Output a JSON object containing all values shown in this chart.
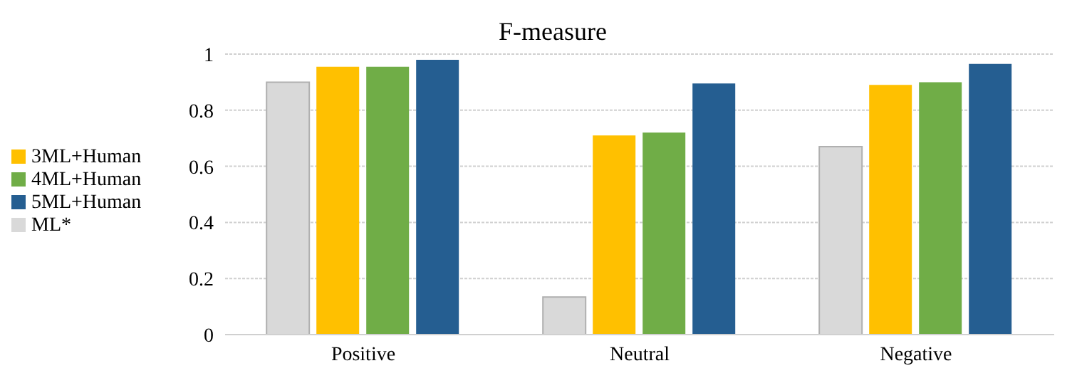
{
  "chart_data": {
    "type": "bar",
    "title": "F-measure",
    "categories": [
      "Positive",
      "Neutral",
      "Negative"
    ],
    "series": [
      {
        "name": "ML*",
        "color": "#d9d9d9",
        "values": [
          0.9,
          0.134,
          0.67
        ]
      },
      {
        "name": "3ML+Human",
        "color": "#ffc000",
        "values": [
          0.955,
          0.71,
          0.89
        ]
      },
      {
        "name": "4ML+Human",
        "color": "#70ad47",
        "values": [
          0.955,
          0.72,
          0.9
        ]
      },
      {
        "name": "5ML+Human",
        "color": "#255e91",
        "values": [
          0.98,
          0.895,
          0.965
        ]
      }
    ],
    "ylim": [
      0,
      1
    ],
    "yticks": [
      0,
      0.2,
      0.4,
      0.6,
      0.8,
      1
    ],
    "grid": "y",
    "legend": "left"
  }
}
